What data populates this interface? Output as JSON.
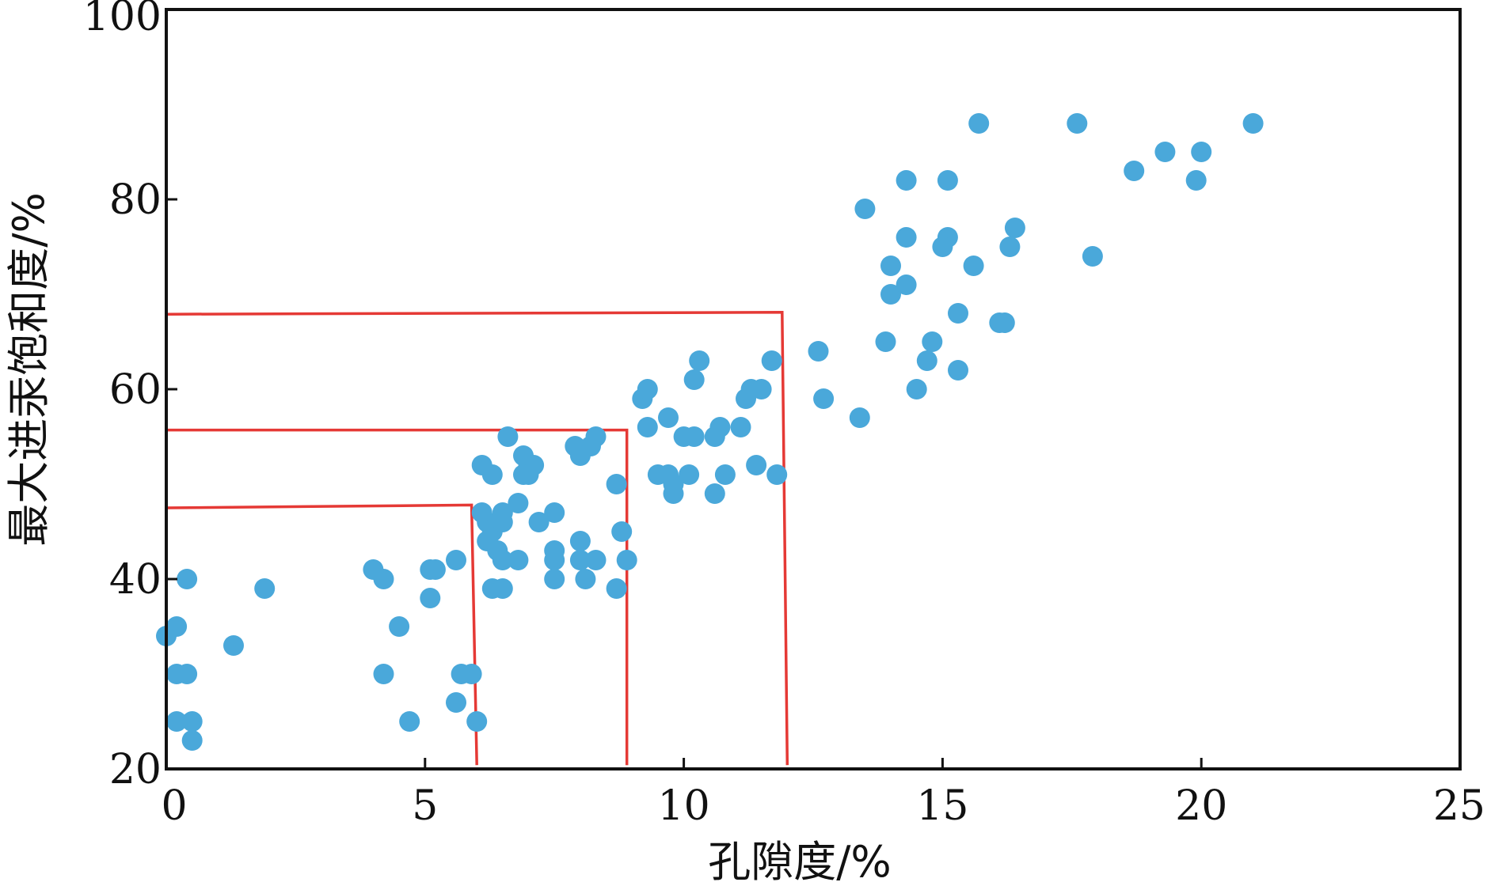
{
  "chart_data": {
    "type": "scatter",
    "title": "",
    "xlabel": "孔隙度/%",
    "ylabel": "最大进汞饱和度/%",
    "xlim": [
      0,
      25
    ],
    "ylim": [
      20,
      100
    ],
    "x_ticks": [
      "0",
      "5",
      "10",
      "15",
      "20",
      "25"
    ],
    "y_ticks": [
      "20",
      "40",
      "60",
      "80",
      "100"
    ],
    "grid": false,
    "legend": "none",
    "point_color": "#4aa8da",
    "line_color": "#e53935",
    "points": [
      [
        0.0,
        34
      ],
      [
        0.2,
        35
      ],
      [
        0.2,
        30
      ],
      [
        0.4,
        30
      ],
      [
        0.2,
        25
      ],
      [
        0.5,
        25
      ],
      [
        0.5,
        23
      ],
      [
        0.4,
        40
      ],
      [
        1.3,
        33
      ],
      [
        1.9,
        39
      ],
      [
        4.0,
        41
      ],
      [
        4.2,
        40
      ],
      [
        4.2,
        30
      ],
      [
        4.5,
        35
      ],
      [
        4.7,
        25
      ],
      [
        5.1,
        41
      ],
      [
        5.2,
        41
      ],
      [
        5.1,
        38
      ],
      [
        5.6,
        42
      ],
      [
        5.6,
        27
      ],
      [
        5.7,
        30
      ],
      [
        5.9,
        30
      ],
      [
        6.0,
        25
      ],
      [
        6.1,
        52
      ],
      [
        6.3,
        51
      ],
      [
        6.1,
        47
      ],
      [
        6.2,
        46
      ],
      [
        6.3,
        45
      ],
      [
        6.4,
        46
      ],
      [
        6.5,
        47
      ],
      [
        6.5,
        46
      ],
      [
        6.2,
        44
      ],
      [
        6.4,
        43
      ],
      [
        6.5,
        42
      ],
      [
        6.3,
        39
      ],
      [
        6.5,
        39
      ],
      [
        6.8,
        42
      ],
      [
        6.6,
        55
      ],
      [
        6.8,
        48
      ],
      [
        6.9,
        53
      ],
      [
        7.0,
        52
      ],
      [
        7.1,
        52
      ],
      [
        6.9,
        51
      ],
      [
        7.0,
        51
      ],
      [
        7.2,
        46
      ],
      [
        7.5,
        47
      ],
      [
        7.5,
        43
      ],
      [
        7.5,
        42
      ],
      [
        7.5,
        40
      ],
      [
        7.9,
        54
      ],
      [
        8.0,
        53
      ],
      [
        8.2,
        54
      ],
      [
        8.3,
        55
      ],
      [
        8.0,
        44
      ],
      [
        8.0,
        42
      ],
      [
        8.1,
        40
      ],
      [
        8.3,
        42
      ],
      [
        8.7,
        50
      ],
      [
        8.8,
        45
      ],
      [
        8.9,
        42
      ],
      [
        8.7,
        39
      ],
      [
        9.2,
        59
      ],
      [
        9.3,
        60
      ],
      [
        9.3,
        56
      ],
      [
        9.5,
        51
      ],
      [
        9.7,
        51
      ],
      [
        9.7,
        57
      ],
      [
        9.8,
        50
      ],
      [
        9.8,
        49
      ],
      [
        10.0,
        55
      ],
      [
        10.1,
        51
      ],
      [
        10.2,
        55
      ],
      [
        10.2,
        61
      ],
      [
        10.3,
        63
      ],
      [
        10.6,
        55
      ],
      [
        10.7,
        56
      ],
      [
        10.6,
        49
      ],
      [
        10.8,
        51
      ],
      [
        11.1,
        56
      ],
      [
        11.2,
        59
      ],
      [
        11.3,
        60
      ],
      [
        11.5,
        60
      ],
      [
        11.4,
        52
      ],
      [
        11.7,
        63
      ],
      [
        11.8,
        51
      ],
      [
        12.6,
        64
      ],
      [
        12.7,
        59
      ],
      [
        13.4,
        57
      ],
      [
        13.5,
        79
      ],
      [
        13.9,
        65
      ],
      [
        14.0,
        73
      ],
      [
        14.0,
        70
      ],
      [
        14.3,
        82
      ],
      [
        14.3,
        76
      ],
      [
        14.3,
        71
      ],
      [
        14.5,
        60
      ],
      [
        14.7,
        63
      ],
      [
        14.8,
        65
      ],
      [
        15.1,
        82
      ],
      [
        15.1,
        76
      ],
      [
        15.0,
        75
      ],
      [
        15.3,
        68
      ],
      [
        15.3,
        62
      ],
      [
        15.7,
        88
      ],
      [
        15.6,
        73
      ],
      [
        16.1,
        67
      ],
      [
        16.2,
        67
      ],
      [
        16.3,
        75
      ],
      [
        16.4,
        77
      ],
      [
        17.6,
        88
      ],
      [
        17.9,
        74
      ],
      [
        18.7,
        83
      ],
      [
        19.3,
        85
      ],
      [
        19.9,
        82
      ],
      [
        20.0,
        85
      ],
      [
        21.0,
        88
      ]
    ],
    "annotation_lines": [
      [
        [
          0,
          47.5
        ],
        [
          5.9,
          47.8
        ],
        [
          6.0,
          20.4
        ]
      ],
      [
        [
          0,
          55.7
        ],
        [
          8.9,
          55.7
        ],
        [
          8.9,
          20.4
        ]
      ],
      [
        [
          0,
          67.9
        ],
        [
          11.9,
          68.1
        ],
        [
          12.0,
          20.4
        ]
      ]
    ]
  }
}
